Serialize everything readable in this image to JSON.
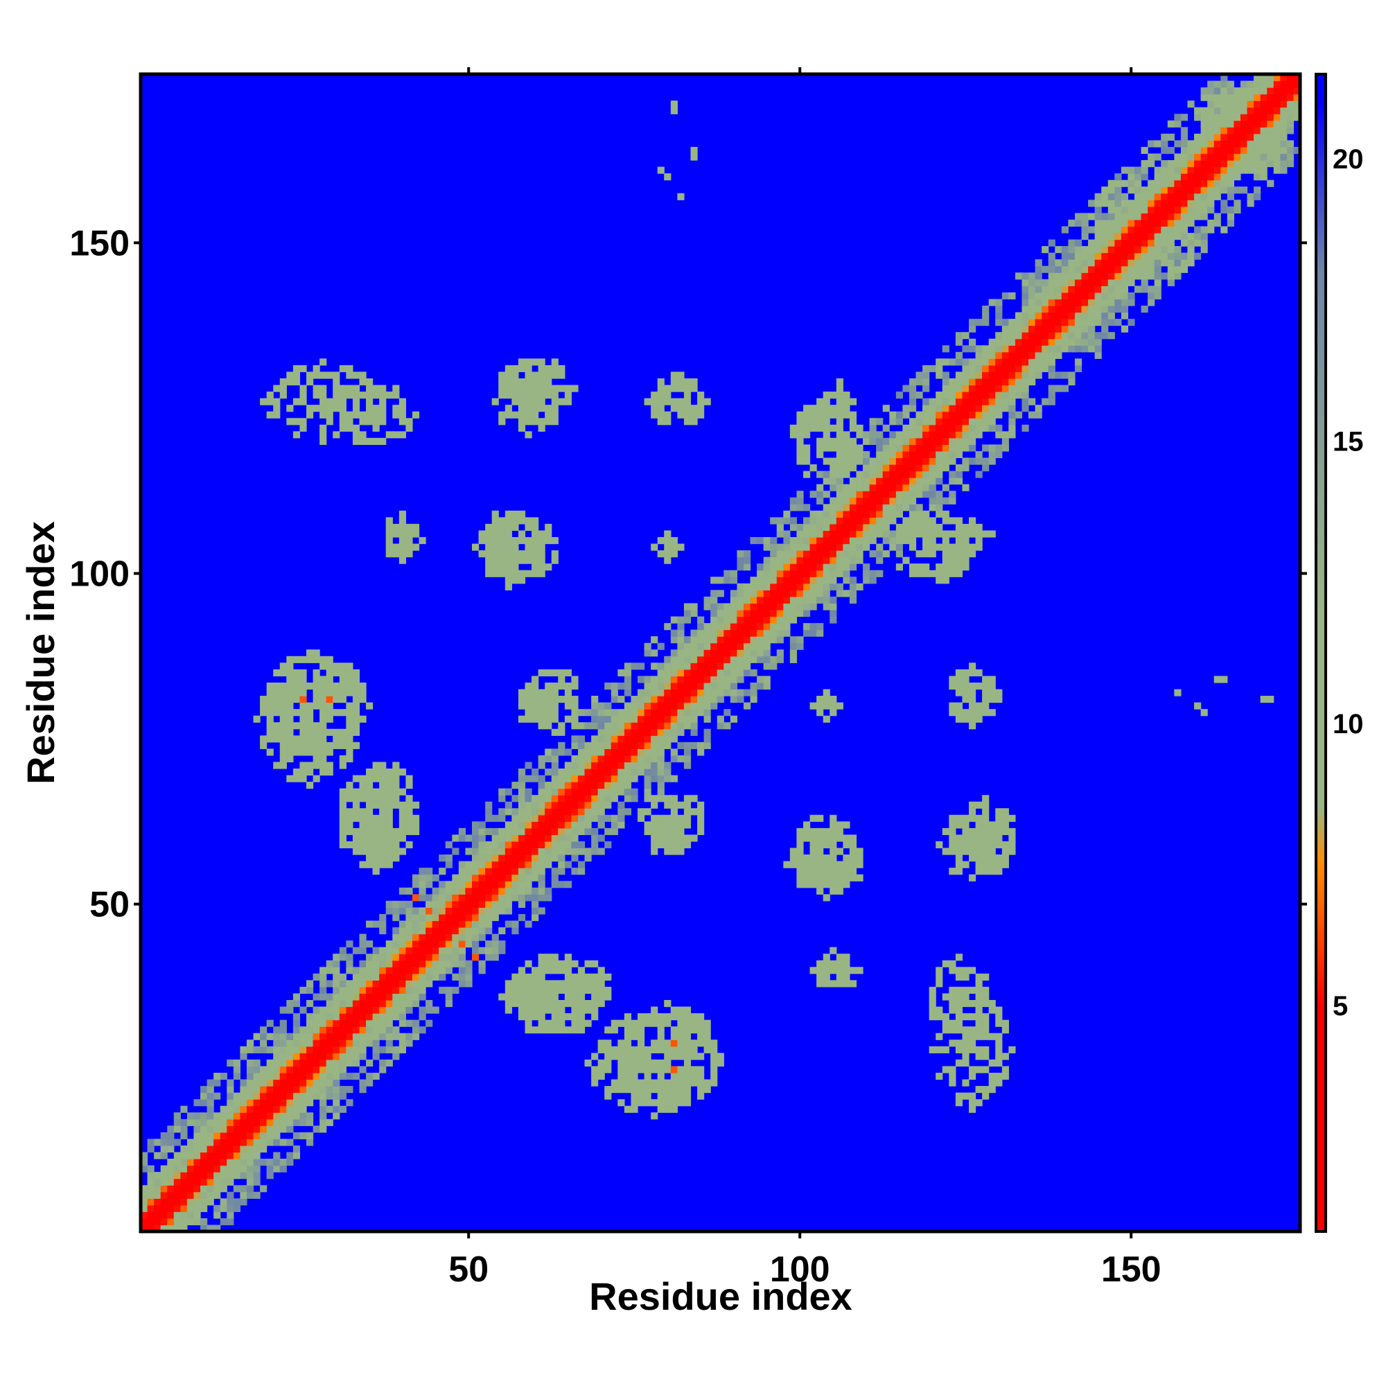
{
  "chart_data": {
    "type": "heatmap",
    "title": "",
    "xlabel": "Residue index",
    "ylabel": "Residue index",
    "n_residues": 175,
    "xlim": [
      1,
      175
    ],
    "ylim": [
      1,
      175
    ],
    "x_ticks": [
      50,
      100,
      150
    ],
    "y_ticks": [
      50,
      100,
      150
    ],
    "colorbar": {
      "range": [
        1,
        21.5
      ],
      "ticks": [
        5,
        10,
        15,
        20
      ],
      "colors": [
        "#ff0000",
        "#ff8c00",
        "#99b584",
        "#6f86a6",
        "#0000ff"
      ]
    },
    "background_color": "#0000ff",
    "diagonal": {
      "core_value": 3,
      "band_width": 6,
      "note_text_visible": false
    },
    "contact_value": 10.5,
    "contact_clusters": [
      {
        "x": 28,
        "y": 126,
        "rx": 9,
        "ry": 6
      },
      {
        "x": 59,
        "y": 126,
        "rx": 5,
        "ry": 5
      },
      {
        "x": 82,
        "y": 126,
        "rx": 4,
        "ry": 4
      },
      {
        "x": 40,
        "y": 105,
        "rx": 3,
        "ry": 3
      },
      {
        "x": 56,
        "y": 104,
        "rx": 5,
        "ry": 6
      },
      {
        "x": 26,
        "y": 78,
        "rx": 8,
        "ry": 10
      },
      {
        "x": 62,
        "y": 80,
        "rx": 5,
        "ry": 4
      },
      {
        "x": 104,
        "y": 80,
        "rx": 2,
        "ry": 2
      },
      {
        "x": 126,
        "y": 81,
        "rx": 4,
        "ry": 4
      },
      {
        "x": 81,
        "y": 63,
        "rx": 5,
        "ry": 4
      },
      {
        "x": 104,
        "y": 58,
        "rx": 5,
        "ry": 6
      },
      {
        "x": 128,
        "y": 60,
        "rx": 5,
        "ry": 6
      },
      {
        "x": 106,
        "y": 40,
        "rx": 3,
        "ry": 3
      },
      {
        "x": 124,
        "y": 35,
        "rx": 5,
        "ry": 7
      },
      {
        "x": 80,
        "y": 27,
        "rx": 8,
        "ry": 8
      },
      {
        "x": 104,
        "y": 120,
        "rx": 6,
        "ry": 6
      },
      {
        "x": 123,
        "y": 106,
        "rx": 6,
        "ry": 4
      },
      {
        "x": 37,
        "y": 64,
        "rx": 6,
        "ry": 8
      },
      {
        "x": 63,
        "y": 36,
        "rx": 8,
        "ry": 6
      },
      {
        "x": 166,
        "y": 168,
        "rx": 6,
        "ry": 6
      },
      {
        "x": 150,
        "y": 154,
        "rx": 6,
        "ry": 6
      }
    ],
    "scattered_points": [
      [
        81,
        171
      ],
      [
        84,
        163
      ],
      [
        79,
        161
      ],
      [
        82,
        157
      ],
      [
        164,
        84
      ],
      [
        160,
        80
      ],
      [
        170,
        81
      ]
    ],
    "hot_points": [
      [
        25,
        81
      ],
      [
        29,
        81
      ],
      [
        81,
        29
      ],
      [
        81,
        25
      ],
      [
        44,
        49
      ],
      [
        49,
        44
      ],
      [
        51,
        42
      ]
    ],
    "grid": false,
    "legend": "none"
  }
}
